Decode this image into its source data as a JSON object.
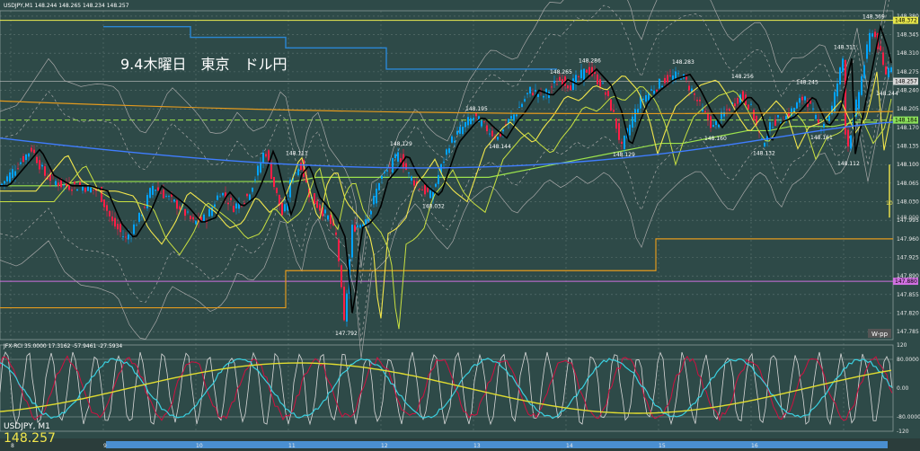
{
  "chart_data": {
    "type": "candlestick",
    "symbol_header": "USDJPY,M1  148.244 148.265 148.234 148.257",
    "annotation": "9.4木曜日　東京　ドル円",
    "indicator_header": "JFX-RCI 35.0000 17.3162 -57.9461 -27.5934",
    "symbol_footer": "USDJPY, M1",
    "last_price": "148.257",
    "price_ticks": [
      "148.380",
      "148.345",
      "148.310",
      "148.275",
      "148.240",
      "148.205",
      "148.170",
      "148.135",
      "148.100",
      "148.065",
      "148.030",
      "147.995",
      "147.960",
      "147.925",
      "147.890",
      "147.855",
      "147.820",
      "147.785"
    ],
    "price_tick_values": [
      148.38,
      148.345,
      148.31,
      148.275,
      148.24,
      148.205,
      148.17,
      148.135,
      148.1,
      148.065,
      148.03,
      147.995,
      147.96,
      147.925,
      147.89,
      147.855,
      147.82,
      147.785
    ],
    "price_badges": [
      {
        "text": "148.372",
        "value": 148.372,
        "bg": "#e6e64a",
        "fg": "#000000"
      },
      {
        "text": "148.257",
        "value": 148.257,
        "bg": "#d8d8d8",
        "fg": "#000000"
      },
      {
        "text": "148.184",
        "value": 148.184,
        "bg": "#8be05a",
        "fg": "#000000"
      },
      {
        "text": "147.880",
        "value": 147.88,
        "bg": "#d070e0",
        "fg": "#000000"
      }
    ],
    "extra_labels": [
      {
        "text": "148.100",
        "value": 148.1
      },
      {
        "text": "148.000",
        "value": 148.0
      }
    ],
    "indicator_ticks": [
      "120",
      "80.0000",
      "0.00",
      "-80.0000",
      "-120"
    ],
    "indicator_tick_values": [
      120,
      80,
      0,
      -80,
      -120
    ],
    "time_ticks": [
      "8",
      "9",
      "10",
      "11",
      "12",
      "13",
      "14",
      "15",
      "16"
    ],
    "watermark": "W-pp",
    "gauge_label": "10",
    "extremes": [
      {
        "text": "148.369",
        "t": 970,
        "price": 148.369,
        "pos": "above"
      },
      {
        "text": "148.311",
        "t": 938,
        "price": 148.311,
        "pos": "above"
      },
      {
        "text": "148.283",
        "t": 758,
        "price": 148.283,
        "pos": "above"
      },
      {
        "text": "148.286",
        "t": 654,
        "price": 148.286,
        "pos": "above"
      },
      {
        "text": "148.265",
        "t": 622,
        "price": 148.265,
        "pos": "above"
      },
      {
        "text": "148.256",
        "t": 824,
        "price": 148.256,
        "pos": "above"
      },
      {
        "text": "148.245",
        "t": 896,
        "price": 148.245,
        "pos": "above"
      },
      {
        "text": "148.244",
        "t": 985,
        "price": 148.244,
        "pos": "below"
      },
      {
        "text": "148.195",
        "t": 528,
        "price": 148.195,
        "pos": "above"
      },
      {
        "text": "148.129",
        "t": 444,
        "price": 148.129,
        "pos": "above"
      },
      {
        "text": "148.111",
        "t": 328,
        "price": 148.111,
        "pos": "above"
      },
      {
        "text": "148.144",
        "t": 554,
        "price": 148.144,
        "pos": "below"
      },
      {
        "text": "148.160",
        "t": 794,
        "price": 148.16,
        "pos": "below"
      },
      {
        "text": "148.161",
        "t": 912,
        "price": 148.161,
        "pos": "below"
      },
      {
        "text": "148.129",
        "t": 692,
        "price": 148.129,
        "pos": "below"
      },
      {
        "text": "148.132",
        "t": 848,
        "price": 148.132,
        "pos": "below"
      },
      {
        "text": "148.112",
        "t": 942,
        "price": 148.112,
        "pos": "below"
      },
      {
        "text": "148.032",
        "t": 480,
        "price": 148.032,
        "pos": "below"
      },
      {
        "text": "147.792",
        "t": 383,
        "price": 147.792,
        "pos": "below"
      }
    ],
    "price_path": [
      [
        0,
        148.06
      ],
      [
        20,
        148.1
      ],
      [
        35,
        148.13
      ],
      [
        50,
        148.08
      ],
      [
        70,
        148.06
      ],
      [
        90,
        148.06
      ],
      [
        110,
        148.05
      ],
      [
        125,
        147.99
      ],
      [
        140,
        147.96
      ],
      [
        155,
        148.0
      ],
      [
        170,
        148.06
      ],
      [
        185,
        148.04
      ],
      [
        200,
        148.02
      ],
      [
        215,
        147.99
      ],
      [
        230,
        148.0
      ],
      [
        245,
        148.05
      ],
      [
        260,
        148.02
      ],
      [
        275,
        148.04
      ],
      [
        285,
        148.08
      ],
      [
        295,
        148.13
      ],
      [
        305,
        148.06
      ],
      [
        315,
        148.0
      ],
      [
        325,
        148.08
      ],
      [
        335,
        148.1
      ],
      [
        345,
        148.04
      ],
      [
        355,
        148.02
      ],
      [
        365,
        148.0
      ],
      [
        375,
        147.96
      ],
      [
        383,
        147.8
      ],
      [
        392,
        147.98
      ],
      [
        402,
        147.99
      ],
      [
        412,
        148.01
      ],
      [
        422,
        148.07
      ],
      [
        432,
        148.09
      ],
      [
        444,
        148.12
      ],
      [
        455,
        148.08
      ],
      [
        465,
        148.06
      ],
      [
        480,
        148.04
      ],
      [
        490,
        148.09
      ],
      [
        500,
        148.14
      ],
      [
        510,
        148.16
      ],
      [
        520,
        148.18
      ],
      [
        528,
        148.19
      ],
      [
        540,
        148.17
      ],
      [
        554,
        148.15
      ],
      [
        565,
        148.18
      ],
      [
        575,
        148.2
      ],
      [
        590,
        148.24
      ],
      [
        605,
        148.23
      ],
      [
        622,
        148.26
      ],
      [
        635,
        148.25
      ],
      [
        654,
        148.28
      ],
      [
        670,
        148.25
      ],
      [
        682,
        148.2
      ],
      [
        692,
        148.13
      ],
      [
        702,
        148.18
      ],
      [
        712,
        148.22
      ],
      [
        725,
        148.24
      ],
      [
        740,
        148.26
      ],
      [
        758,
        148.27
      ],
      [
        770,
        148.24
      ],
      [
        782,
        148.2
      ],
      [
        794,
        148.17
      ],
      [
        808,
        148.2
      ],
      [
        824,
        148.23
      ],
      [
        835,
        148.21
      ],
      [
        848,
        148.14
      ],
      [
        860,
        148.18
      ],
      [
        875,
        148.19
      ],
      [
        896,
        148.23
      ],
      [
        912,
        148.17
      ],
      [
        925,
        148.2
      ],
      [
        938,
        148.3
      ],
      [
        942,
        148.12
      ],
      [
        955,
        148.23
      ],
      [
        970,
        148.36
      ],
      [
        978,
        148.32
      ],
      [
        985,
        148.27
      ],
      [
        992,
        148.29
      ]
    ],
    "colors": {
      "background": "#2e4a48",
      "grid": "#5e7673",
      "candle_up": "#00a3ff",
      "candle_down": "#ff1e46",
      "ema_fast": "#000000",
      "ema_mid": "#f2e64c",
      "sma_long": "#3f7dff",
      "bands": "#a8a8a8",
      "resistance": "#f2f250",
      "step_blue": "#2a87d4",
      "step_green": "#9be24c",
      "step_orange": "#e39a1e",
      "rci_white": "#d8d8d8",
      "rci_cyan": "#3ad0e0",
      "rci_red": "#d01040",
      "rci_yellow": "#e0dc30",
      "time_strip": "#4a8fd0"
    },
    "ylim_price": [
      147.77,
      148.39
    ],
    "ylim_rci": [
      -120,
      120
    ]
  }
}
